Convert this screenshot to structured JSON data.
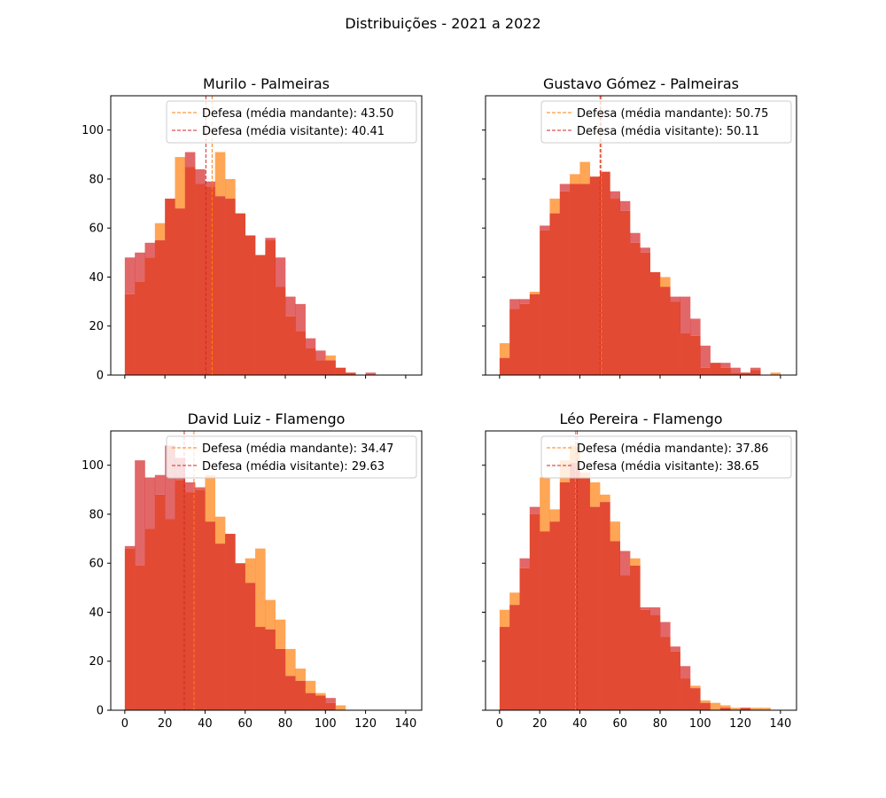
{
  "figure": {
    "suptitle": "Distribuições - 2021 a 2022"
  },
  "colors": {
    "mandante": "#ff7f0e",
    "visitante": "#d62728",
    "overlap": "#e24a33"
  },
  "chart_data": [
    {
      "type": "histogram",
      "title": "Murilo - Palmeiras",
      "xlim": [
        -7,
        148
      ],
      "ylim": [
        0,
        114
      ],
      "xticks": [
        0,
        20,
        40,
        60,
        80,
        100,
        120,
        140
      ],
      "yticks": [
        0,
        20,
        40,
        60,
        80,
        100
      ],
      "show_xtick_labels": false,
      "show_ytick_labels": true,
      "bin_width": 5,
      "series": [
        {
          "name": "Defesa (média mandante)",
          "start": 0,
          "values": [
            33,
            38,
            48,
            62,
            72,
            89,
            85,
            78,
            77,
            91,
            80,
            66,
            57,
            49,
            55,
            36,
            24,
            18,
            11,
            6,
            8,
            3,
            1,
            0,
            0,
            0
          ]
        },
        {
          "name": "Defesa (média visitante)",
          "start": 0,
          "values": [
            48,
            50,
            54,
            55,
            72,
            68,
            91,
            84,
            79,
            73,
            72,
            66,
            57,
            49,
            56,
            48,
            32,
            29,
            15,
            10,
            6,
            3,
            1,
            0,
            1,
            0
          ]
        }
      ],
      "lines": [
        {
          "label": "Defesa (média mandante): 43.50",
          "x": 43.5,
          "series": "mandante"
        },
        {
          "label": "Defesa (média visitante): 40.41",
          "x": 40.41,
          "series": "visitante"
        }
      ]
    },
    {
      "type": "histogram",
      "title": "Gustavo Gómez - Palmeiras",
      "xlim": [
        -7,
        148
      ],
      "ylim": [
        0,
        114
      ],
      "xticks": [
        0,
        20,
        40,
        60,
        80,
        100,
        120,
        140
      ],
      "yticks": [
        0,
        20,
        40,
        60,
        80,
        100
      ],
      "show_xtick_labels": false,
      "show_ytick_labels": false,
      "bin_width": 5,
      "series": [
        {
          "name": "Defesa (média mandante)",
          "start": 0,
          "values": [
            13,
            27,
            29,
            34,
            59,
            72,
            75,
            82,
            87,
            81,
            83,
            72,
            67,
            54,
            50,
            42,
            40,
            30,
            17,
            16,
            3,
            5,
            3,
            1,
            1,
            2,
            0,
            1
          ]
        },
        {
          "name": "Defesa (média visitante)",
          "start": 0,
          "values": [
            7,
            31,
            31,
            33,
            61,
            66,
            78,
            78,
            78,
            81,
            83,
            75,
            71,
            58,
            52,
            42,
            36,
            32,
            32,
            23,
            12,
            5,
            5,
            3,
            1,
            3,
            0,
            0
          ]
        }
      ],
      "lines": [
        {
          "label": "Defesa (média mandante): 50.75",
          "x": 50.75,
          "series": "mandante"
        },
        {
          "label": "Defesa (média visitante): 50.11",
          "x": 50.11,
          "series": "visitante"
        }
      ]
    },
    {
      "type": "histogram",
      "title": "David Luiz - Flamengo",
      "xlim": [
        -7,
        148
      ],
      "ylim": [
        0,
        114
      ],
      "xticks": [
        0,
        20,
        40,
        60,
        80,
        100,
        120,
        140
      ],
      "yticks": [
        0,
        20,
        40,
        60,
        80,
        100
      ],
      "show_xtick_labels": true,
      "show_ytick_labels": true,
      "bin_width": 5,
      "series": [
        {
          "name": "Defesa (média mandante)",
          "start": 0,
          "values": [
            66,
            59,
            74,
            88,
            78,
            94,
            89,
            90,
            96,
            79,
            72,
            60,
            62,
            66,
            45,
            37,
            25,
            17,
            12,
            7,
            3,
            2,
            0,
            0,
            0,
            0
          ]
        },
        {
          "name": "Defesa (média visitante)",
          "start": 0,
          "values": [
            67,
            102,
            95,
            96,
            108,
            103,
            93,
            91,
            77,
            68,
            72,
            60,
            52,
            34,
            33,
            25,
            14,
            12,
            7,
            6,
            5,
            0,
            0,
            0,
            0,
            0
          ]
        }
      ],
      "lines": [
        {
          "label": "Defesa (média mandante): 34.47",
          "x": 34.47,
          "series": "mandante"
        },
        {
          "label": "Defesa (média visitante): 29.63",
          "x": 29.63,
          "series": "visitante"
        }
      ]
    },
    {
      "type": "histogram",
      "title": "Léo Pereira - Flamengo",
      "xlim": [
        -7,
        148
      ],
      "ylim": [
        0,
        114
      ],
      "xticks": [
        0,
        20,
        40,
        60,
        80,
        100,
        120,
        140
      ],
      "yticks": [
        0,
        20,
        40,
        60,
        80,
        100
      ],
      "show_xtick_labels": true,
      "show_ytick_labels": false,
      "bin_width": 5,
      "series": [
        {
          "name": "Defesa (média mandante)",
          "start": 0,
          "values": [
            41,
            48,
            58,
            80,
            95,
            82,
            102,
            108,
            97,
            93,
            88,
            77,
            55,
            62,
            41,
            39,
            30,
            24,
            13,
            10,
            4,
            3,
            2,
            1,
            1,
            1,
            1,
            0
          ]
        },
        {
          "name": "Defesa (média visitante)",
          "start": 0,
          "values": [
            34,
            43,
            62,
            83,
            73,
            77,
            93,
            101,
            95,
            83,
            85,
            69,
            65,
            59,
            42,
            42,
            36,
            26,
            18,
            9,
            3,
            0,
            1,
            0,
            1,
            0,
            0,
            0
          ]
        }
      ],
      "lines": [
        {
          "label": "Defesa (média mandante): 37.86",
          "x": 37.86,
          "series": "mandante"
        },
        {
          "label": "Defesa (média visitante): 38.65",
          "x": 38.65,
          "series": "visitante"
        }
      ]
    }
  ]
}
